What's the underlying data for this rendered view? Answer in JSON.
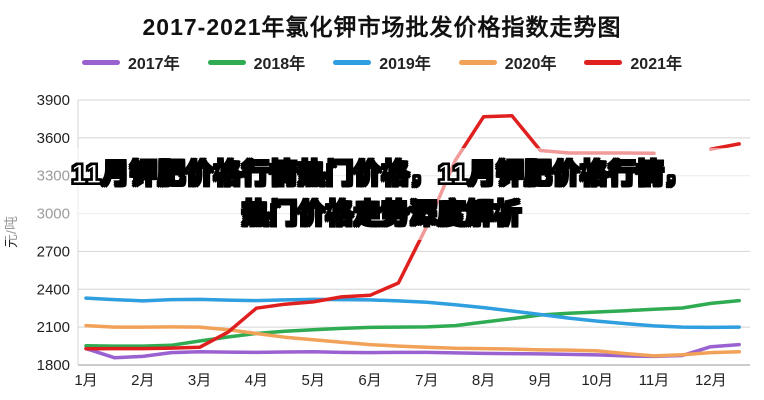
{
  "overlay": {
    "line1": "11月钾肥价格行情热门价格，11月钾肥价格行情，",
    "line2": "热门价格走势深度解析"
  },
  "chart_data": {
    "type": "line",
    "title": "2017-2021年氯化钾市场批发价格指数走势图",
    "ylabel": "元/吨",
    "ylim": [
      1800,
      3900
    ],
    "ytick_step": 300,
    "grid": true,
    "legend_position": "top",
    "x_categories": [
      "1月",
      "2月",
      "3月",
      "4月",
      "5月",
      "6月",
      "7月",
      "8月",
      "9月",
      "10月",
      "11月",
      "12月"
    ],
    "x": [
      1,
      1.5,
      2,
      2.5,
      3,
      3.5,
      4,
      4.5,
      5,
      5.5,
      6,
      6.5,
      7,
      7.5,
      8,
      8.5,
      9,
      9.5,
      10,
      10.5,
      11,
      11.5,
      12,
      12.5
    ],
    "series": [
      {
        "name": "2017年",
        "color": "#9a62d0",
        "values": [
          1930,
          1858,
          1868,
          1898,
          1905,
          1902,
          1900,
          1903,
          1905,
          1900,
          1898,
          1900,
          1900,
          1896,
          1892,
          1890,
          1888,
          1884,
          1880,
          1872,
          1868,
          1875,
          1945,
          1962
        ]
      },
      {
        "name": "2018年",
        "color": "#2fab52",
        "values": [
          1952,
          1950,
          1950,
          1956,
          1990,
          2022,
          2050,
          2068,
          2080,
          2090,
          2098,
          2100,
          2102,
          2112,
          2140,
          2168,
          2196,
          2210,
          2220,
          2230,
          2242,
          2252,
          2288,
          2310
        ]
      },
      {
        "name": "2019年",
        "color": "#2f9fdf",
        "values": [
          2330,
          2318,
          2308,
          2318,
          2320,
          2314,
          2310,
          2316,
          2320,
          2318,
          2316,
          2308,
          2298,
          2278,
          2255,
          2228,
          2200,
          2172,
          2148,
          2128,
          2110,
          2100,
          2098,
          2100
        ]
      },
      {
        "name": "2020年",
        "color": "#f2a158",
        "values": [
          2112,
          2100,
          2100,
          2102,
          2100,
          2080,
          2050,
          2020,
          2000,
          1980,
          1962,
          1950,
          1940,
          1932,
          1930,
          1926,
          1920,
          1918,
          1912,
          1890,
          1872,
          1882,
          1898,
          1905
        ]
      },
      {
        "name": "2021年",
        "color": "#e01f1f",
        "values": [
          1928,
          1930,
          1930,
          1934,
          1940,
          2060,
          2250,
          2282,
          2300,
          2340,
          2352,
          2450,
          2900,
          3420,
          3768,
          3775,
          3500,
          3480,
          3480,
          3480,
          3478,
          null,
          3510,
          3552
        ]
      }
    ]
  }
}
